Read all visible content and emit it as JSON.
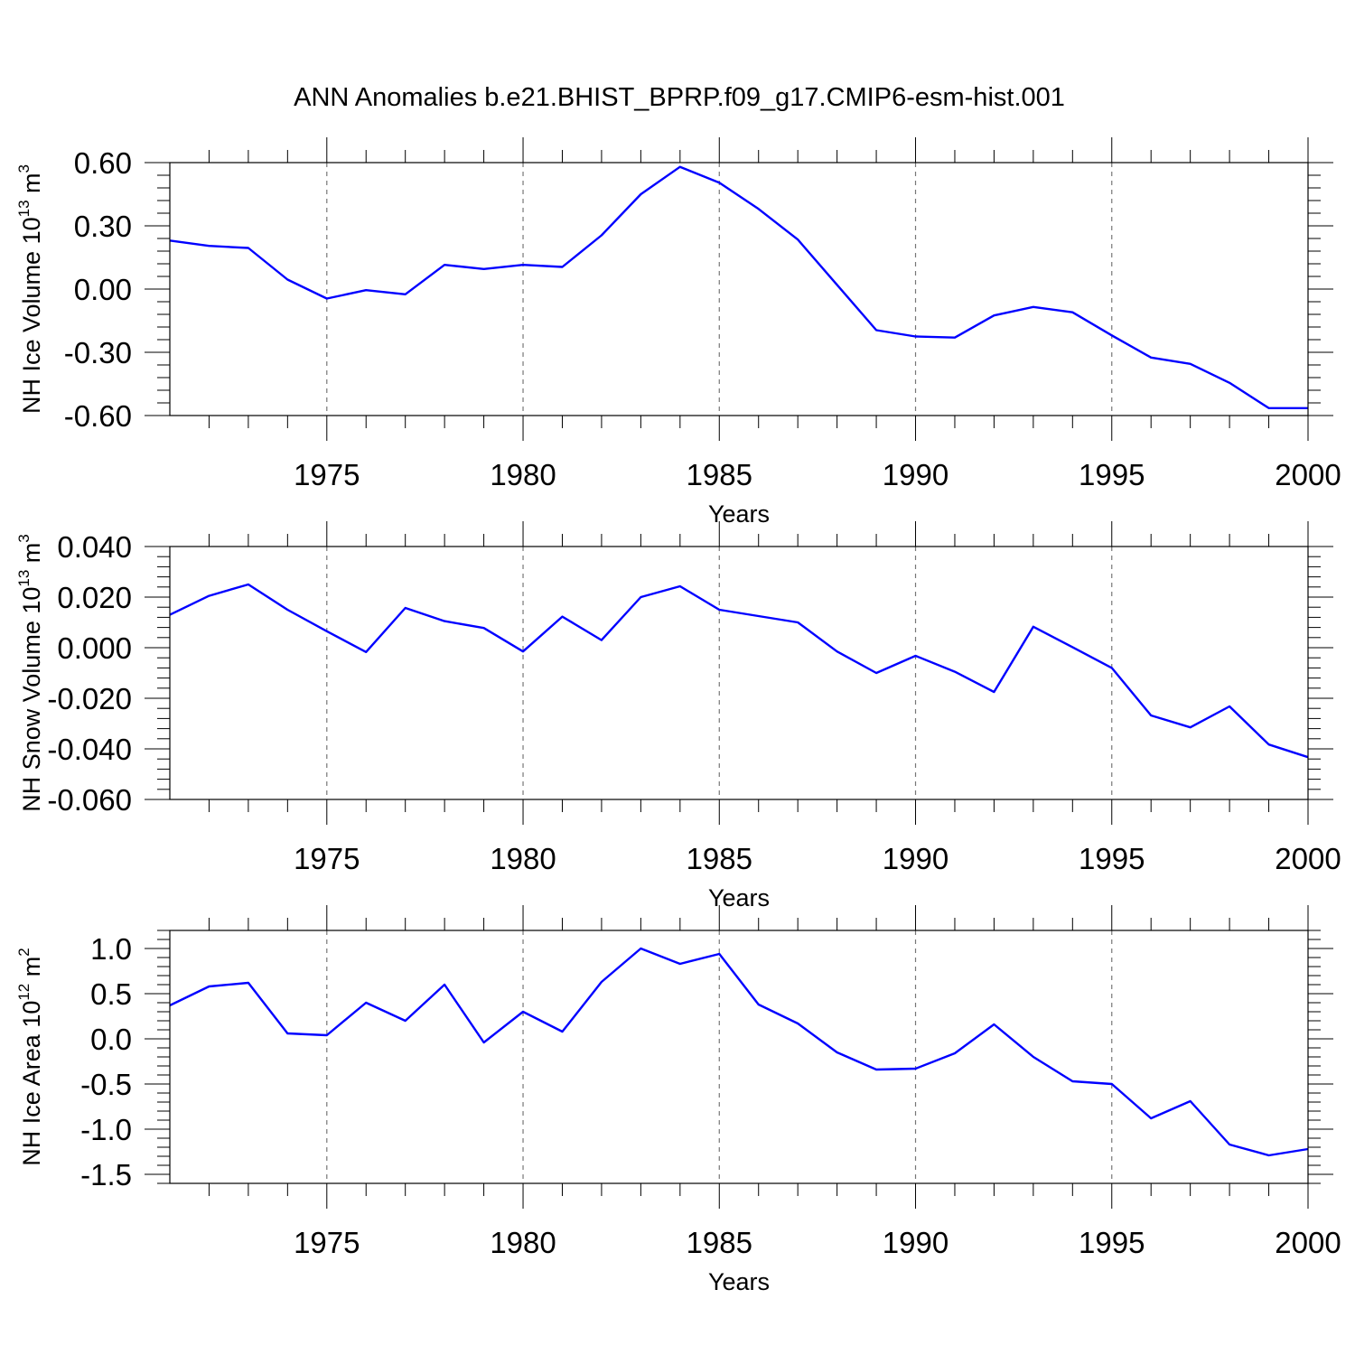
{
  "chart_data": [
    {
      "type": "line",
      "title": "ANN Anomalies b.e21.BHIST_BPRP.f09_g17.CMIP6-esm-hist.001",
      "xlabel": "Years",
      "ylabel": {
        "text": "NH Ice Volume 10",
        "sup": "13",
        "unit": " m",
        "unitsup": "3"
      },
      "xlim": [
        1971,
        2000
      ],
      "ylim": [
        -0.6,
        0.6
      ],
      "yticks": [
        0.6,
        0.3,
        0.0,
        -0.3,
        -0.6
      ],
      "ytick_labels": [
        "0.60",
        "0.30",
        "0.00",
        "-0.30",
        "-0.60"
      ],
      "xticks": [
        1975,
        1980,
        1985,
        1990,
        1995,
        2000
      ],
      "xtick_labels": [
        "1975",
        "1980",
        "1985",
        "1990",
        "1995",
        "2000"
      ],
      "line_color": "#0000ff",
      "series": [
        {
          "name": "NH Ice Volume",
          "x": [
            1971,
            1972,
            1973,
            1974,
            1975,
            1976,
            1977,
            1978,
            1979,
            1980,
            1981,
            1982,
            1983,
            1984,
            1985,
            1986,
            1987,
            1988,
            1989,
            1990,
            1991,
            1992,
            1993,
            1994,
            1995,
            1996,
            1997,
            1998,
            1999,
            2000
          ],
          "values": [
            0.23,
            0.205,
            0.195,
            0.045,
            -0.045,
            -0.005,
            -0.025,
            0.115,
            0.095,
            0.115,
            0.105,
            0.255,
            0.45,
            0.58,
            0.505,
            0.38,
            0.235,
            0.02,
            -0.195,
            -0.225,
            -0.23,
            -0.125,
            -0.085,
            -0.11,
            -0.22,
            -0.325,
            -0.355,
            -0.445,
            -0.565,
            -0.565
          ]
        }
      ]
    },
    {
      "type": "line",
      "xlabel": "Years",
      "ylabel": {
        "text": "NH Snow Volume 10",
        "sup": "13",
        "unit": " m",
        "unitsup": "3"
      },
      "xlim": [
        1971,
        2000
      ],
      "ylim": [
        -0.06,
        0.04
      ],
      "yticks": [
        0.04,
        0.02,
        0.0,
        -0.02,
        -0.04,
        -0.06
      ],
      "ytick_labels": [
        "0.040",
        "0.020",
        "0.000",
        "-0.020",
        "-0.040",
        "-0.060"
      ],
      "xticks": [
        1975,
        1980,
        1985,
        1990,
        1995,
        2000
      ],
      "xtick_labels": [
        "1975",
        "1980",
        "1985",
        "1990",
        "1995",
        "2000"
      ],
      "line_color": "#0000ff",
      "series": [
        {
          "name": "NH Snow Volume",
          "x": [
            1971,
            1972,
            1973,
            1974,
            1975,
            1976,
            1977,
            1978,
            1979,
            1980,
            1981,
            1982,
            1983,
            1984,
            1985,
            1986,
            1987,
            1988,
            1989,
            1990,
            1991,
            1992,
            1993,
            1994,
            1995,
            1996,
            1997,
            1998,
            1999,
            2000
          ],
          "values": [
            0.013,
            0.0205,
            0.025,
            0.015,
            0.0065,
            -0.0017,
            0.0157,
            0.0105,
            0.0078,
            -0.0015,
            0.0123,
            0.003,
            0.02,
            0.0243,
            0.015,
            0.0125,
            0.01,
            -0.0015,
            -0.01,
            -0.0032,
            -0.0095,
            -0.0175,
            0.0083,
            0.0002,
            -0.008,
            -0.0268,
            -0.0315,
            -0.0232,
            -0.0383,
            -0.0433
          ]
        }
      ]
    },
    {
      "type": "line",
      "xlabel": "Years",
      "ylabel": {
        "text": "NH Ice Area 10",
        "sup": "12",
        "unit": " m",
        "unitsup": "2"
      },
      "xlim": [
        1971,
        2000
      ],
      "ylim": [
        -1.6,
        1.2
      ],
      "yticks": [
        1.0,
        0.5,
        0.0,
        -0.5,
        -1.0,
        -1.5
      ],
      "ytick_labels": [
        "1.0",
        "0.5",
        "0.0",
        "-0.5",
        "-1.0",
        "-1.5"
      ],
      "xticks": [
        1975,
        1980,
        1985,
        1990,
        1995,
        2000
      ],
      "xtick_labels": [
        "1975",
        "1980",
        "1985",
        "1990",
        "1995",
        "2000"
      ],
      "line_color": "#0000ff",
      "series": [
        {
          "name": "NH Ice Area",
          "x": [
            1971,
            1972,
            1973,
            1974,
            1975,
            1976,
            1977,
            1978,
            1979,
            1980,
            1981,
            1982,
            1983,
            1984,
            1985,
            1986,
            1987,
            1988,
            1989,
            1990,
            1991,
            1992,
            1993,
            1994,
            1995,
            1996,
            1997,
            1998,
            1999,
            2000
          ],
          "values": [
            0.37,
            0.58,
            0.62,
            0.06,
            0.04,
            0.4,
            0.2,
            0.6,
            -0.04,
            0.3,
            0.08,
            0.63,
            1.0,
            0.83,
            0.94,
            0.38,
            0.17,
            -0.15,
            -0.34,
            -0.33,
            -0.16,
            0.16,
            -0.2,
            -0.47,
            -0.5,
            -0.88,
            -0.69,
            -1.17,
            -1.29,
            -1.22
          ]
        }
      ]
    }
  ]
}
